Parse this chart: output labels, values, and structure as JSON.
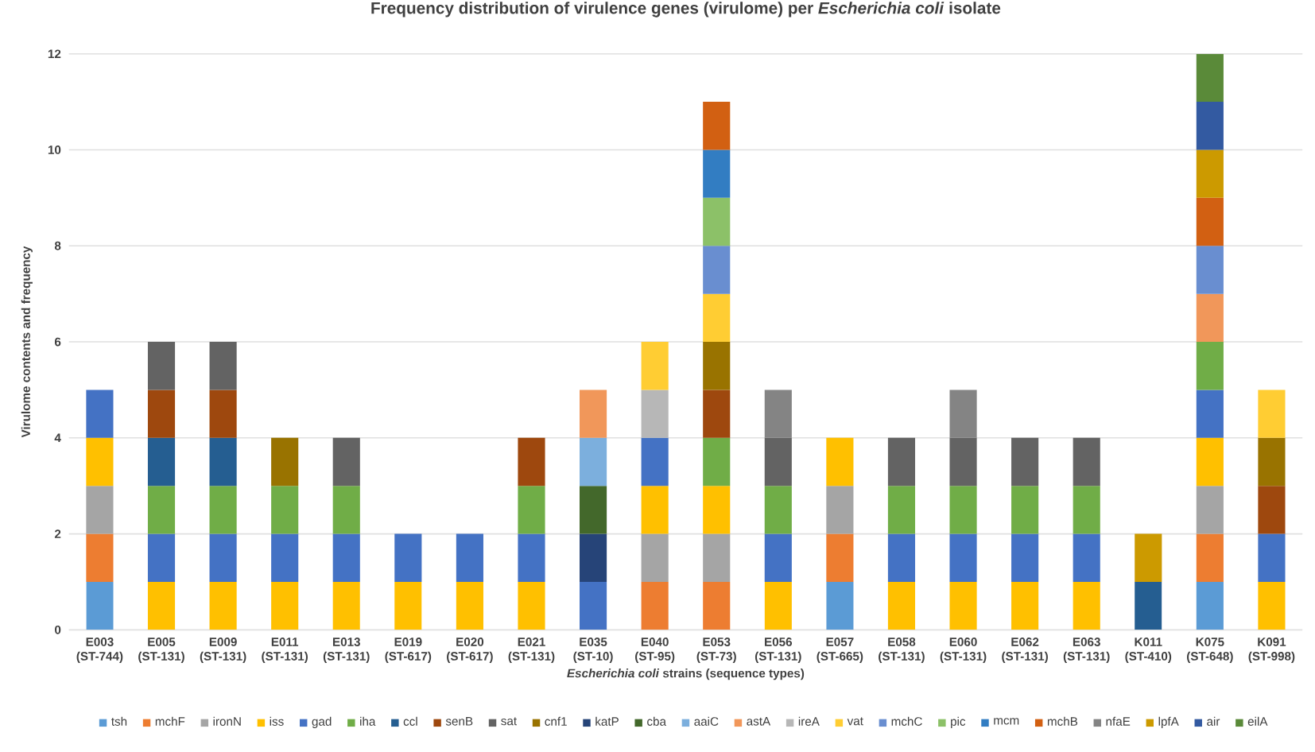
{
  "chart_data": {
    "type": "bar",
    "stacked": true,
    "title": "Frequency distribution of virulence genes (virulome) per *Escherichia coli* isolate",
    "xlabel": "*Escherichia coli* strains (sequence types)",
    "ylabel": "Virulome contents and frequency",
    "categories": [
      "E003 (ST-744)",
      "E005 (ST-131)",
      "E009 (ST-131)",
      "E011 (ST-131)",
      "E013 (ST-131)",
      "E019 (ST-617)",
      "E020 (ST-617)",
      "E021 (ST-131)",
      "E035 (ST-10)",
      "E040 (ST-95)",
      "E053 (ST-73)",
      "E056 (ST-131)",
      "E057 (ST-665)",
      "E058 (ST-131)",
      "E060 (ST-131)",
      "E062 (ST-131)",
      "E063 (ST-131)",
      "K011 (ST-410)",
      "K075 (ST-648)",
      "K091 (ST-998)"
    ],
    "ylim": [
      0,
      12
    ],
    "yticks": [
      0,
      2,
      4,
      6,
      8,
      10,
      12
    ],
    "grid": "y",
    "legend": "bottom",
    "series": [
      {
        "name": "tsh",
        "color": "#5b9bd5",
        "values": [
          1,
          null,
          null,
          null,
          null,
          null,
          null,
          null,
          null,
          null,
          null,
          null,
          1,
          null,
          null,
          null,
          null,
          null,
          1,
          null
        ]
      },
      {
        "name": "mchF",
        "color": "#ed7d31",
        "values": [
          1,
          null,
          null,
          null,
          null,
          null,
          null,
          null,
          null,
          1,
          1,
          null,
          1,
          null,
          null,
          null,
          null,
          null,
          1,
          null
        ]
      },
      {
        "name": "ironN",
        "color": "#a5a5a5",
        "values": [
          1,
          null,
          null,
          null,
          null,
          null,
          null,
          null,
          null,
          1,
          1,
          null,
          1,
          null,
          null,
          null,
          null,
          null,
          1,
          null
        ]
      },
      {
        "name": "iss",
        "color": "#ffc000",
        "values": [
          1,
          1,
          1,
          1,
          1,
          1,
          1,
          1,
          null,
          1,
          1,
          1,
          1,
          1,
          1,
          1,
          1,
          null,
          1,
          1
        ]
      },
      {
        "name": "gad",
        "color": "#4472c4",
        "values": [
          1,
          1,
          1,
          1,
          1,
          1,
          1,
          1,
          1,
          1,
          null,
          1,
          null,
          1,
          1,
          1,
          1,
          null,
          1,
          1
        ]
      },
      {
        "name": "iha",
        "color": "#70ad47",
        "values": [
          null,
          1,
          1,
          1,
          1,
          null,
          null,
          1,
          null,
          null,
          1,
          1,
          null,
          1,
          1,
          1,
          1,
          null,
          1,
          null
        ]
      },
      {
        "name": "ccl",
        "color": "#255e91",
        "values": [
          null,
          1,
          1,
          null,
          null,
          null,
          null,
          null,
          null,
          null,
          null,
          null,
          null,
          null,
          null,
          null,
          null,
          1,
          null,
          null
        ]
      },
      {
        "name": "senB",
        "color": "#9e480e",
        "values": [
          null,
          1,
          1,
          null,
          null,
          null,
          null,
          1,
          null,
          null,
          1,
          null,
          null,
          null,
          null,
          null,
          null,
          null,
          null,
          1
        ]
      },
      {
        "name": "sat",
        "color": "#636363",
        "values": [
          null,
          1,
          1,
          null,
          1,
          null,
          null,
          null,
          null,
          null,
          null,
          1,
          null,
          1,
          1,
          1,
          1,
          null,
          null,
          null
        ]
      },
      {
        "name": "cnf1",
        "color": "#997300",
        "values": [
          null,
          null,
          null,
          1,
          null,
          null,
          null,
          null,
          null,
          null,
          1,
          null,
          null,
          null,
          null,
          null,
          null,
          null,
          null,
          1
        ]
      },
      {
        "name": "katP",
        "color": "#264478",
        "values": [
          null,
          null,
          null,
          null,
          null,
          null,
          null,
          null,
          1,
          null,
          null,
          null,
          null,
          null,
          null,
          null,
          null,
          null,
          null,
          null
        ]
      },
      {
        "name": "cba",
        "color": "#43682b",
        "values": [
          null,
          null,
          null,
          null,
          null,
          null,
          null,
          null,
          1,
          null,
          null,
          null,
          null,
          null,
          null,
          null,
          null,
          null,
          null,
          null
        ]
      },
      {
        "name": "aaiC",
        "color": "#7cafdd",
        "values": [
          null,
          null,
          null,
          null,
          null,
          null,
          null,
          null,
          1,
          null,
          null,
          null,
          null,
          null,
          null,
          null,
          null,
          null,
          null,
          null
        ]
      },
      {
        "name": "astA",
        "color": "#f1975a",
        "values": [
          null,
          null,
          null,
          null,
          null,
          null,
          null,
          null,
          1,
          null,
          null,
          null,
          null,
          null,
          null,
          null,
          null,
          null,
          1,
          null
        ]
      },
      {
        "name": "ireA",
        "color": "#b7b7b7",
        "values": [
          null,
          null,
          null,
          null,
          null,
          null,
          null,
          null,
          null,
          1,
          null,
          null,
          null,
          null,
          null,
          null,
          null,
          null,
          null,
          null
        ]
      },
      {
        "name": "vat",
        "color": "#ffcd33",
        "values": [
          null,
          null,
          null,
          null,
          null,
          null,
          null,
          null,
          null,
          1,
          1,
          null,
          null,
          null,
          null,
          null,
          null,
          null,
          null,
          1
        ]
      },
      {
        "name": "mchC",
        "color": "#698ed0",
        "values": [
          null,
          null,
          null,
          null,
          null,
          null,
          null,
          null,
          null,
          null,
          1,
          null,
          null,
          null,
          null,
          null,
          null,
          null,
          1,
          null
        ]
      },
      {
        "name": "pic",
        "color": "#8cc168",
        "values": [
          null,
          null,
          null,
          null,
          null,
          null,
          null,
          null,
          null,
          null,
          1,
          null,
          null,
          null,
          null,
          null,
          null,
          null,
          null,
          null
        ]
      },
      {
        "name": "mcm",
        "color": "#327dc2",
        "values": [
          null,
          null,
          null,
          null,
          null,
          null,
          null,
          null,
          null,
          null,
          1,
          null,
          null,
          null,
          null,
          null,
          null,
          null,
          null,
          null
        ]
      },
      {
        "name": "mchB",
        "color": "#d26012",
        "values": [
          null,
          null,
          null,
          null,
          null,
          null,
          null,
          null,
          null,
          null,
          1,
          null,
          null,
          null,
          null,
          null,
          null,
          null,
          1,
          null
        ]
      },
      {
        "name": "nfaE",
        "color": "#848484",
        "values": [
          null,
          null,
          null,
          null,
          null,
          null,
          null,
          null,
          null,
          null,
          null,
          1,
          null,
          null,
          1,
          null,
          null,
          null,
          null,
          null
        ]
      },
      {
        "name": "lpfA",
        "color": "#cc9a00",
        "values": [
          null,
          null,
          null,
          null,
          null,
          null,
          null,
          null,
          null,
          null,
          null,
          null,
          null,
          null,
          null,
          null,
          null,
          1,
          1,
          null
        ]
      },
      {
        "name": "air",
        "color": "#335aa1",
        "values": [
          null,
          null,
          null,
          null,
          null,
          null,
          null,
          null,
          null,
          null,
          null,
          null,
          null,
          null,
          null,
          null,
          null,
          null,
          1,
          null
        ]
      },
      {
        "name": "eilA",
        "color": "#5a8a39",
        "values": [
          null,
          null,
          null,
          null,
          null,
          null,
          null,
          null,
          null,
          null,
          null,
          null,
          null,
          null,
          null,
          null,
          null,
          null,
          1,
          null
        ]
      }
    ]
  }
}
